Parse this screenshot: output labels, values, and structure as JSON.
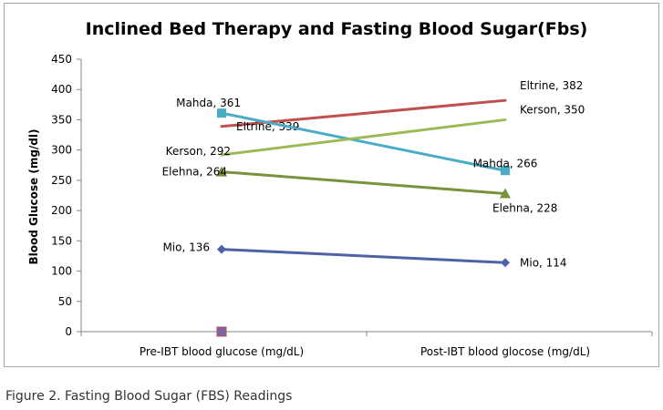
{
  "caption": "Figure 2. Fasting Blood Sugar (FBS) Readings",
  "chart_data": {
    "type": "line",
    "title": "Inclined Bed Therapy and Fasting Blood Sugar(Fbs)",
    "xlabel": "",
    "ylabel": "Blood Glucose (mg/dl)",
    "categories": [
      "Pre-IBT blood glucose (mg/dL)",
      "Post-IBT blood glocose (mg/dL)"
    ],
    "ylim": [
      0,
      450
    ],
    "yticks": [
      "0",
      "50",
      "100",
      "150",
      "200",
      "250",
      "300",
      "350",
      "400",
      "450"
    ],
    "grid": false,
    "legend": "none",
    "series": [
      {
        "name": "Mio",
        "values": [
          136,
          114
        ],
        "color": "#4f62a8",
        "marker": "diamond",
        "labels": [
          "Mio, 136",
          "Mio, 114"
        ]
      },
      {
        "name": "Eltrine",
        "values": [
          339,
          382
        ],
        "color": "#c0504d",
        "marker": "none",
        "labels": [
          "Eltrine, 339",
          "Eltrine, 382"
        ]
      },
      {
        "name": "Mahda",
        "values": [
          361,
          266
        ],
        "color": "#4bacc6",
        "marker": "square",
        "labels": [
          "Mahda, 361",
          "Mahda, 266"
        ]
      },
      {
        "name": "Kerson",
        "values": [
          292,
          350
        ],
        "color": "#9bbb59",
        "marker": "none",
        "labels": [
          "Kerson, 292",
          "Kerson, 350"
        ]
      },
      {
        "name": "Elehna",
        "values": [
          264,
          228
        ],
        "color": "#77933c",
        "marker": "triangle",
        "labels": [
          "Elehna, 264",
          "Elehna, 228"
        ]
      }
    ],
    "extra_point": {
      "category_index": 0,
      "value": 0,
      "color": "#8064a2",
      "marker": "square"
    }
  }
}
